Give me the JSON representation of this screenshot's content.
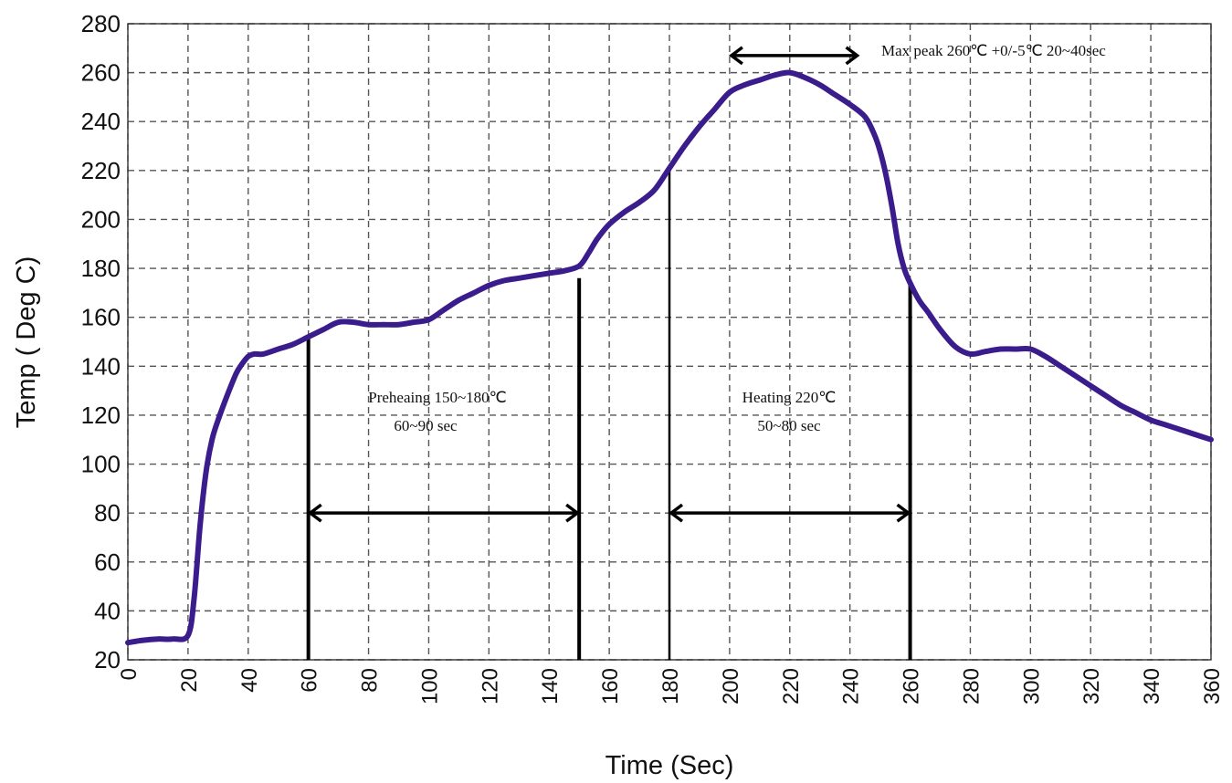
{
  "chart_data": {
    "type": "line",
    "title": "",
    "xlabel": "Time (Sec)",
    "ylabel": "Temp ( Deg C)",
    "xlim": [
      0,
      360
    ],
    "ylim": [
      20,
      280
    ],
    "x_ticks": [
      "0",
      "20",
      "40",
      "60",
      "80",
      "100",
      "120",
      "140",
      "160",
      "180",
      "200",
      "220",
      "240",
      "260",
      "280",
      "300",
      "320",
      "340",
      "360"
    ],
    "y_ticks": [
      "20",
      "40",
      "60",
      "80",
      "100",
      "120",
      "140",
      "160",
      "180",
      "200",
      "220",
      "240",
      "260",
      "280"
    ],
    "grid": true,
    "series": [
      {
        "color": "#3a1c8c",
        "x": [
          0,
          5,
          10,
          15,
          20,
          22,
          24,
          26,
          28,
          30,
          33,
          36,
          38,
          40,
          42,
          45,
          50,
          55,
          60,
          65,
          70,
          75,
          80,
          85,
          90,
          95,
          100,
          105,
          110,
          115,
          120,
          125,
          130,
          135,
          140,
          145,
          150,
          153,
          156,
          160,
          165,
          170,
          175,
          180,
          185,
          190,
          195,
          200,
          205,
          210,
          215,
          220,
          225,
          230,
          235,
          240,
          245,
          248,
          250,
          252,
          254,
          256,
          258,
          260,
          263,
          266,
          270,
          275,
          280,
          285,
          290,
          295,
          300,
          305,
          310,
          315,
          320,
          325,
          330,
          335,
          340,
          345,
          350,
          355,
          360
        ],
        "y": [
          27,
          28,
          28.5,
          28.5,
          30,
          45,
          75,
          97,
          110,
          118,
          128,
          137,
          141,
          144,
          145,
          145,
          147,
          149,
          152,
          155,
          158,
          158,
          157,
          157,
          157,
          158,
          159,
          163,
          167,
          170,
          173,
          175,
          176,
          177,
          178,
          179,
          181,
          186,
          192,
          198,
          203,
          207,
          212,
          221,
          230,
          238,
          245,
          252,
          255,
          257,
          259,
          260,
          258,
          255,
          251,
          247,
          242,
          235,
          228,
          218,
          205,
          190,
          180,
          174,
          167,
          162,
          155,
          148,
          145,
          146,
          147,
          147,
          147,
          144,
          140,
          136,
          132,
          128,
          124,
          121,
          118,
          116,
          114,
          112,
          110
        ]
      }
    ],
    "markers": {
      "vertical_lines_x": [
        60,
        150,
        180,
        260
      ],
      "arrows": [
        {
          "from": 60,
          "to": 150,
          "y": 80
        },
        {
          "from": 180,
          "to": 260,
          "y": 80
        },
        {
          "from": 200,
          "to": 243,
          "y": 267
        }
      ]
    },
    "annotations": {
      "preheating_line1": "Preheaing 150~180℃",
      "preheating_line2": "60~90 sec",
      "heating_line1": "Heating 220℃",
      "heating_line2": "50~80 sec",
      "max_peak": "Max peak 260℃ +0/-5℃ 20~40sec"
    }
  }
}
